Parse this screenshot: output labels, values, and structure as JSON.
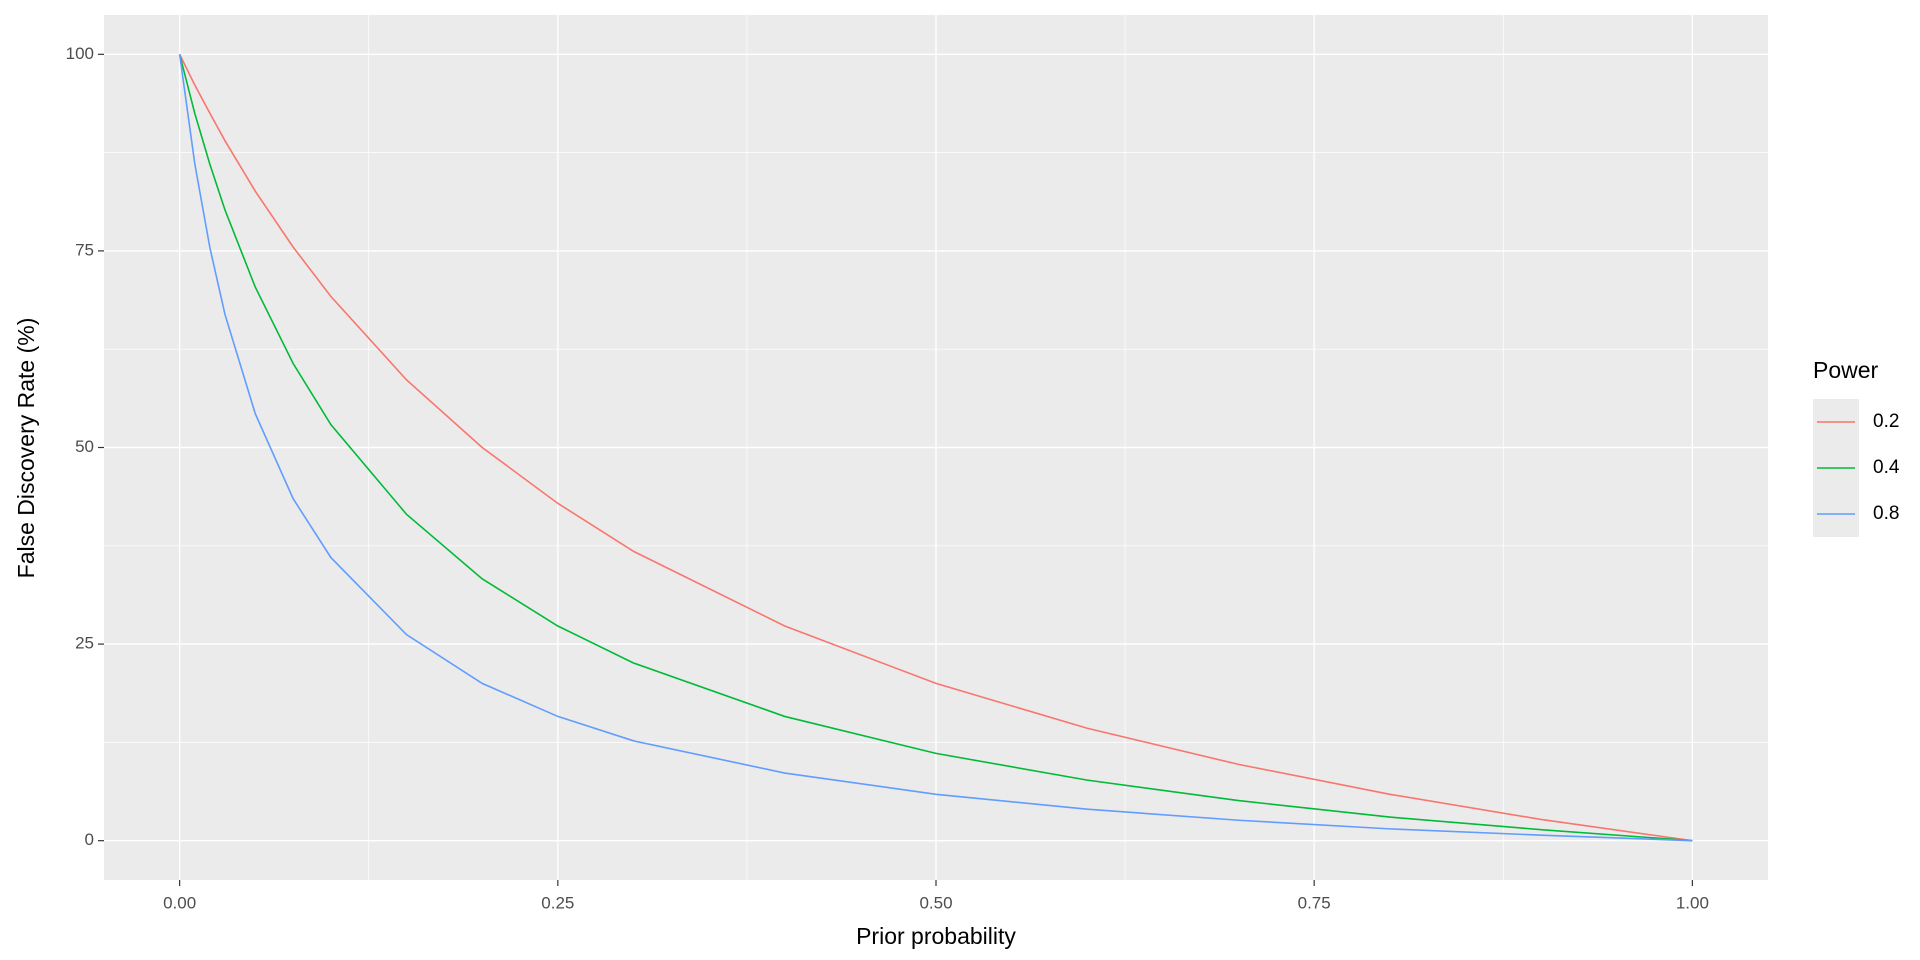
{
  "chart_data": {
    "type": "line",
    "x_label": "Prior probability",
    "y_label": "False Discovery Rate (%)",
    "x": [
      0,
      0.01,
      0.02,
      0.03,
      0.05,
      0.075,
      0.1,
      0.15,
      0.2,
      0.25,
      0.3,
      0.4,
      0.5,
      0.6,
      0.7,
      0.8,
      0.9,
      1
    ],
    "series": [
      {
        "name": "0.2",
        "color": "#F8766D",
        "values": [
          100,
          96.1,
          92.5,
          89.0,
          82.6,
          75.5,
          69.2,
          58.6,
          50,
          42.9,
          36.8,
          27.3,
          20,
          14.3,
          9.7,
          5.9,
          2.7,
          0
        ]
      },
      {
        "name": "0.4",
        "color": "#00BA38",
        "values": [
          100,
          92.5,
          86.0,
          80.2,
          70.4,
          60.7,
          52.9,
          41.5,
          33.3,
          27.3,
          22.6,
          15.8,
          11.1,
          7.7,
          5.1,
          3.0,
          1.4,
          0
        ]
      },
      {
        "name": "0.8",
        "color": "#619CFF",
        "values": [
          100,
          86.1,
          75.4,
          66.9,
          54.3,
          43.5,
          36.0,
          26.2,
          20,
          15.8,
          12.7,
          8.6,
          5.9,
          4.0,
          2.6,
          1.5,
          0.7,
          0
        ]
      }
    ],
    "legend_title": "Power",
    "xlim": [
      -0.05,
      1.05
    ],
    "ylim": [
      -5,
      105
    ],
    "xticks": [
      {
        "value": 0,
        "label": "0.00"
      },
      {
        "value": 0.25,
        "label": "0.25"
      },
      {
        "value": 0.5,
        "label": "0.50"
      },
      {
        "value": 0.75,
        "label": "0.75"
      },
      {
        "value": 1,
        "label": "1.00"
      }
    ],
    "yticks": [
      0,
      25,
      50,
      75,
      100
    ],
    "grid": true
  }
}
